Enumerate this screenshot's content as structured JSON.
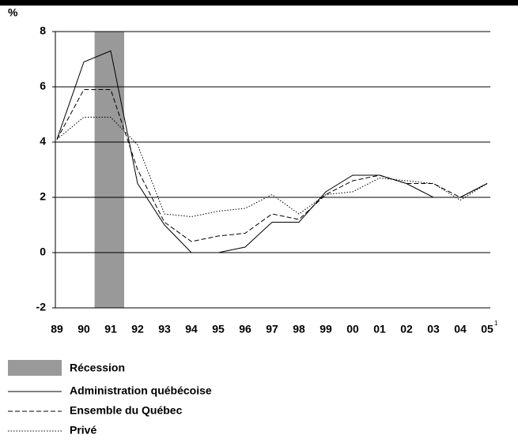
{
  "chart_data": {
    "type": "line",
    "y_unit": "%",
    "categories": [
      "89",
      "90",
      "91",
      "92",
      "93",
      "94",
      "95",
      "96",
      "97",
      "98",
      "99",
      "00",
      "01",
      "02",
      "03",
      "04",
      "05"
    ],
    "last_category_note": "1",
    "ylim": [
      -2,
      8
    ],
    "yticks": [
      -2,
      0,
      2,
      4,
      6,
      8
    ],
    "grid": true,
    "recession": {
      "name": "Récession",
      "color": "#999999",
      "categories": [
        "90",
        "91"
      ]
    },
    "series": [
      {
        "name": "Administration québécoise",
        "color": "#000000",
        "dash": "solid",
        "values": [
          4.1,
          6.9,
          7.3,
          2.5,
          1.0,
          0.0,
          0.0,
          0.2,
          1.1,
          1.1,
          2.2,
          2.8,
          2.8,
          2.5,
          2.0,
          2.0,
          2.5
        ]
      },
      {
        "name": "Ensemble du Québec",
        "color": "#000000",
        "dash": "dashed",
        "values": [
          4.1,
          5.9,
          5.9,
          3.0,
          1.1,
          0.4,
          0.6,
          0.7,
          1.4,
          1.2,
          2.1,
          2.6,
          2.8,
          2.5,
          2.5,
          2.0,
          2.5
        ]
      },
      {
        "name": "Privé",
        "color": "#000000",
        "dash": "dotted",
        "values": [
          4.1,
          4.9,
          4.9,
          3.9,
          1.4,
          1.3,
          1.5,
          1.6,
          2.1,
          1.4,
          2.1,
          2.2,
          2.7,
          2.6,
          2.5,
          1.9,
          2.5
        ]
      }
    ]
  }
}
